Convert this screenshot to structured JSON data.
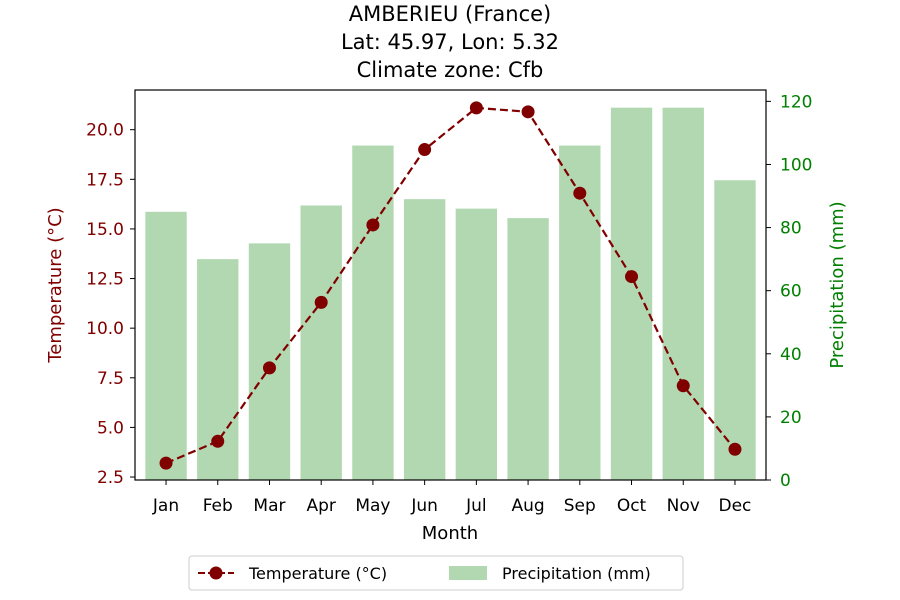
{
  "chart_data": {
    "type": "bar+line",
    "title_lines": [
      "AMBERIEU (France)",
      "Lat: 45.97, Lon: 5.32",
      "Climate zone: Cfb"
    ],
    "xlabel": "Month",
    "categories": [
      "Jan",
      "Feb",
      "Mar",
      "Apr",
      "May",
      "Jun",
      "Jul",
      "Aug",
      "Sep",
      "Oct",
      "Nov",
      "Dec"
    ],
    "temperature": {
      "name": "Temperature (°C)",
      "axis_label": "Temperature (°C)",
      "values": [
        3.2,
        4.3,
        8.0,
        11.3,
        15.2,
        19.0,
        21.1,
        20.9,
        16.8,
        12.6,
        7.1,
        3.9
      ],
      "ylim": [
        2.35,
        22.0
      ],
      "ticks": [
        2.5,
        5.0,
        7.5,
        10.0,
        12.5,
        15.0,
        17.5,
        20.0
      ],
      "color": "#800000",
      "line_style": "dashed",
      "marker": "circle"
    },
    "precipitation": {
      "name": "Precipitation (mm)",
      "axis_label": "Precipitation (mm)",
      "values": [
        85,
        70,
        75,
        87,
        106,
        89,
        86,
        83,
        106,
        118,
        118,
        95
      ],
      "ylim": [
        0,
        123.6
      ],
      "ticks": [
        0,
        20,
        40,
        60,
        80,
        100,
        120
      ],
      "color": "#008000",
      "bar_color": "#b2d8b2"
    },
    "legend": {
      "placement": "bottom-center",
      "entries": [
        "Temperature (°C)",
        "Precipitation (mm)"
      ]
    }
  }
}
